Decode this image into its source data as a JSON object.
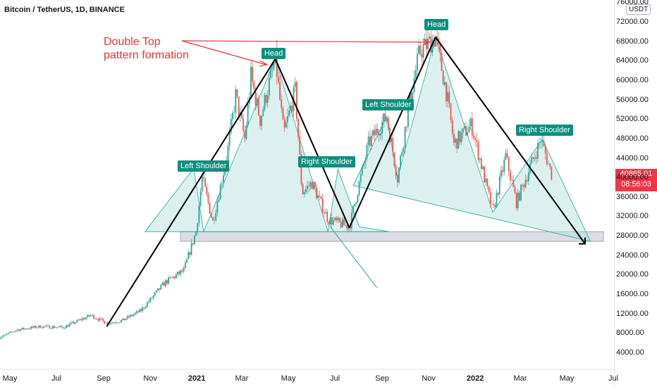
{
  "header": {
    "title": "Bitcoin / TetherUS, 1D, BINANCE"
  },
  "annotations": {
    "double_top_line1": "Double Top",
    "double_top_line2": "pattern formation",
    "badges": [
      "Head",
      "Left Shoulder",
      "Right Shoulder",
      "Head",
      "Left Shoulder",
      "Right Shoulder"
    ]
  },
  "price_scale": {
    "currency": "USDT",
    "current_price": "40865.01",
    "countdown": "08:56:03",
    "ticks": [
      "76000.00",
      "72000.00",
      "68000.00",
      "64000.00",
      "60000.00",
      "56000.00",
      "52000.00",
      "48000.00",
      "44000.00",
      "40000.00",
      "36000.00",
      "32000.00",
      "28000.00",
      "24000.00",
      "20000.00",
      "16000.00",
      "12000.00",
      "8000.00",
      "4000.00"
    ]
  },
  "time_scale": {
    "ticks": [
      "May",
      "Jul",
      "Sep",
      "Nov",
      "2021",
      "Mar",
      "May",
      "Jul",
      "Sep",
      "Nov",
      "2022",
      "Mar",
      "May",
      "Jul"
    ]
  },
  "colors": {
    "up": "#26a69a",
    "down": "#ef5350",
    "pattern_fill": "#b2dfdb",
    "pattern_line": "#26a69a",
    "trend_line": "#000000",
    "annotation_red": "#e8343c",
    "support_zone": "#d1d4dc",
    "badge": "#0e8f7e"
  },
  "chart_data": {
    "type": "candlestick",
    "title": "Bitcoin / TetherUS, 1D, BINANCE",
    "x": [
      "2020-05",
      "2020-07",
      "2020-09",
      "2020-11",
      "2021-01",
      "2021-03",
      "2021-05",
      "2021-07",
      "2021-09",
      "2021-11",
      "2022-01",
      "2022-03",
      "2022-05",
      "2022-07"
    ],
    "close_path": [
      [
        "2020-04-15",
        7000
      ],
      [
        "2020-05-10",
        8800
      ],
      [
        "2020-06-10",
        9500
      ],
      [
        "2020-07-10",
        9300
      ],
      [
        "2020-08-15",
        11800
      ],
      [
        "2020-09-05",
        10200
      ],
      [
        "2020-09-25",
        10700
      ],
      [
        "2020-10-20",
        12800
      ],
      [
        "2020-11-20",
        18500
      ],
      [
        "2020-12-15",
        21000
      ],
      [
        "2020-12-31",
        29000
      ],
      [
        "2021-01-08",
        40000
      ],
      [
        "2021-01-22",
        31000
      ],
      [
        "2021-02-10",
        45000
      ],
      [
        "2021-02-21",
        57000
      ],
      [
        "2021-03-05",
        48000
      ],
      [
        "2021-03-13",
        61000
      ],
      [
        "2021-03-25",
        52000
      ],
      [
        "2021-04-14",
        64500
      ],
      [
        "2021-04-25",
        49000
      ],
      [
        "2021-05-10",
        58000
      ],
      [
        "2021-05-19",
        37000
      ],
      [
        "2021-06-01",
        39000
      ],
      [
        "2021-06-22",
        31500
      ],
      [
        "2021-07-20",
        30000
      ],
      [
        "2021-08-14",
        47000
      ],
      [
        "2021-08-24",
        49500
      ],
      [
        "2021-09-07",
        52700
      ],
      [
        "2021-09-21",
        40000
      ],
      [
        "2021-10-06",
        55000
      ],
      [
        "2021-10-20",
        66000
      ],
      [
        "2021-11-10",
        69000
      ],
      [
        "2021-11-25",
        57000
      ],
      [
        "2021-12-04",
        47000
      ],
      [
        "2021-12-27",
        51000
      ],
      [
        "2022-01-24",
        33000
      ],
      [
        "2022-02-10",
        44500
      ],
      [
        "2022-02-24",
        35000
      ],
      [
        "2022-03-28",
        48000
      ],
      [
        "2022-04-11",
        40865
      ]
    ],
    "support_zone": [
      27000,
      29000
    ],
    "ylim": [
      2000,
      78000
    ],
    "y_scale": "linear"
  }
}
